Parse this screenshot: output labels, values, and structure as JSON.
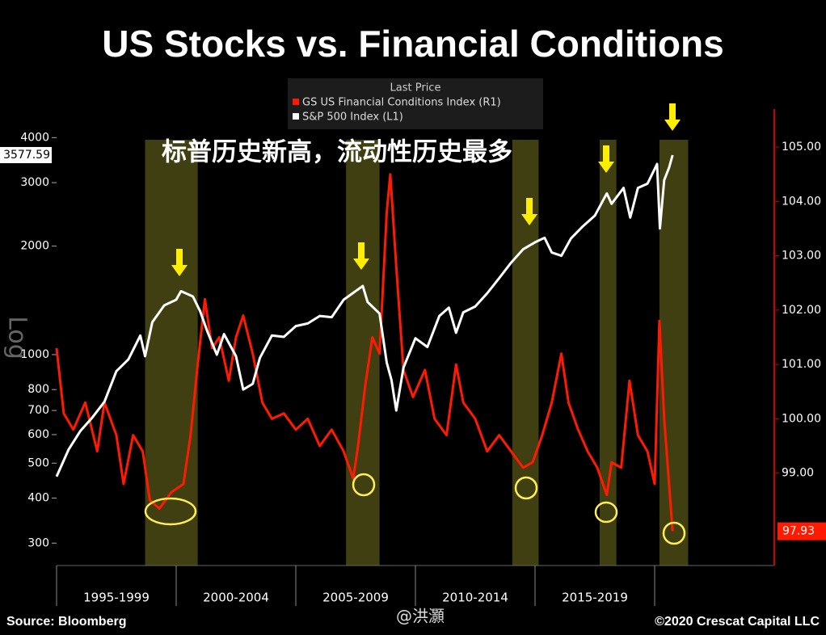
{
  "chart_data": {
    "type": "line",
    "title": "US Stocks vs. Financial Conditions",
    "legend_title": "Last Price",
    "annotation": "标普历史新高，流动性历史最多",
    "ylabel": "Log",
    "source": "Source: Bloomberg",
    "copyright": "©2020 Crescat Capital LLC",
    "watermark": "@洪灝",
    "xlim": [
      1995,
      2025
    ],
    "xticks": [
      {
        "value": 1997.5,
        "label": "1995-1999"
      },
      {
        "value": 2002.5,
        "label": "2000-2004"
      },
      {
        "value": 2007.5,
        "label": "2005-2009"
      },
      {
        "value": 2012.5,
        "label": "2010-2014"
      },
      {
        "value": 2017.5,
        "label": "2015-2019"
      }
    ],
    "x_separators": [
      2000,
      2005,
      2010,
      2015,
      2020
    ],
    "ylim": [
      260,
      4800
    ],
    "log_scale": true,
    "yticks": [
      300,
      400,
      500,
      600,
      700,
      800,
      1000,
      2000,
      3000,
      4000
    ],
    "y2lim": [
      97.3,
      105.7
    ],
    "y2ticks": [
      {
        "value": 99,
        "label": "99.00"
      },
      {
        "value": 100,
        "label": "100.00"
      },
      {
        "value": 101,
        "label": "101.00"
      },
      {
        "value": 102,
        "label": "102.00"
      },
      {
        "value": 103,
        "label": "103.00"
      },
      {
        "value": 104,
        "label": "104.00"
      },
      {
        "value": 105,
        "label": "105.00"
      }
    ],
    "highlights": [
      {
        "start": 1998.7,
        "end": 2000.9
      },
      {
        "start": 2007.1,
        "end": 2008.5
      },
      {
        "start": 2014.05,
        "end": 2015.15
      },
      {
        "start": 2017.7,
        "end": 2018.4
      },
      {
        "start": 2020.2,
        "end": 2021.4
      }
    ],
    "series": [
      {
        "name": "GS US Financial Conditions Index (R1)",
        "color": "#ff1a00",
        "axis": "y2",
        "x": [
          1995.0,
          1995.3,
          1995.7,
          1996.2,
          1996.7,
          1997.0,
          1997.5,
          1997.8,
          1998.2,
          1998.6,
          1998.9,
          1999.3,
          1999.8,
          2000.3,
          2000.6,
          2000.9,
          2001.2,
          2001.5,
          2001.8,
          2002.2,
          2002.5,
          2002.8,
          2003.2,
          2003.6,
          2004.0,
          2004.5,
          2005.0,
          2005.5,
          2006.0,
          2006.5,
          2007.0,
          2007.4,
          2007.6,
          2007.9,
          2008.2,
          2008.5,
          2008.8,
          2008.95,
          2009.2,
          2009.5,
          2009.9,
          2010.4,
          2010.8,
          2011.3,
          2011.7,
          2012.0,
          2012.5,
          2013.0,
          2013.5,
          2014.0,
          2014.5,
          2014.9,
          2015.3,
          2015.7,
          2016.1,
          2016.4,
          2016.8,
          2017.2,
          2017.6,
          2018.0,
          2018.2,
          2018.6,
          2018.95,
          2019.3,
          2019.7,
          2020.0,
          2020.2,
          2020.4,
          2020.6,
          2020.75
        ],
        "values": [
          101.3,
          100.1,
          99.8,
          100.3,
          99.4,
          100.3,
          99.7,
          98.8,
          99.7,
          99.4,
          98.5,
          98.35,
          98.65,
          98.8,
          99.7,
          101.0,
          102.2,
          101.3,
          101.5,
          100.7,
          101.5,
          101.9,
          101.2,
          100.3,
          100.0,
          100.1,
          99.8,
          100.0,
          99.5,
          99.8,
          99.4,
          98.9,
          99.5,
          100.6,
          101.5,
          101.2,
          103.8,
          104.5,
          102.8,
          100.9,
          100.4,
          100.9,
          100.0,
          99.7,
          101.0,
          100.3,
          100.0,
          99.4,
          99.7,
          99.4,
          99.1,
          99.2,
          99.7,
          100.3,
          101.2,
          100.3,
          99.8,
          99.4,
          99.1,
          98.6,
          99.2,
          99.1,
          100.7,
          99.7,
          99.4,
          98.8,
          101.8,
          100.0,
          98.8,
          97.93
        ]
      },
      {
        "name": "S&P 500 Index (L1)",
        "color": "#ffffff",
        "x": [
          1995.0,
          1995.5,
          1996.0,
          1996.5,
          1997.0,
          1997.5,
          1998.0,
          1998.5,
          1998.7,
          1999.0,
          1999.5,
          2000.0,
          2000.2,
          2000.7,
          2001.0,
          2001.3,
          2001.7,
          2002.0,
          2002.5,
          2002.8,
          2003.2,
          2003.5,
          2004.0,
          2004.5,
          2005.0,
          2005.5,
          2006.0,
          2006.5,
          2007.0,
          2007.5,
          2007.8,
          2008.0,
          2008.5,
          2008.8,
          2009.0,
          2009.2,
          2009.5,
          2010.0,
          2010.5,
          2011.0,
          2011.4,
          2011.7,
          2012.0,
          2012.5,
          2013.0,
          2013.5,
          2014.0,
          2014.5,
          2015.0,
          2015.4,
          2015.7,
          2016.1,
          2016.5,
          2017.0,
          2017.5,
          2018.0,
          2018.2,
          2018.7,
          2018.98,
          2019.3,
          2019.7,
          2020.1,
          2020.22,
          2020.4,
          2020.6,
          2020.75
        ],
        "values": [
          459,
          545,
          615,
          670,
          740,
          900,
          970,
          1130,
          990,
          1230,
          1370,
          1420,
          1500,
          1450,
          1320,
          1160,
          1000,
          1140,
          990,
          800,
          830,
          980,
          1130,
          1120,
          1200,
          1220,
          1280,
          1270,
          1420,
          1500,
          1550,
          1400,
          1300,
          950,
          850,
          700,
          920,
          1110,
          1050,
          1280,
          1350,
          1150,
          1310,
          1360,
          1480,
          1630,
          1800,
          1960,
          2050,
          2110,
          1920,
          1880,
          2100,
          2270,
          2430,
          2800,
          2620,
          2900,
          2400,
          2900,
          2980,
          3380,
          2240,
          3050,
          3300,
          3577.59
        ]
      }
    ]
  }
}
